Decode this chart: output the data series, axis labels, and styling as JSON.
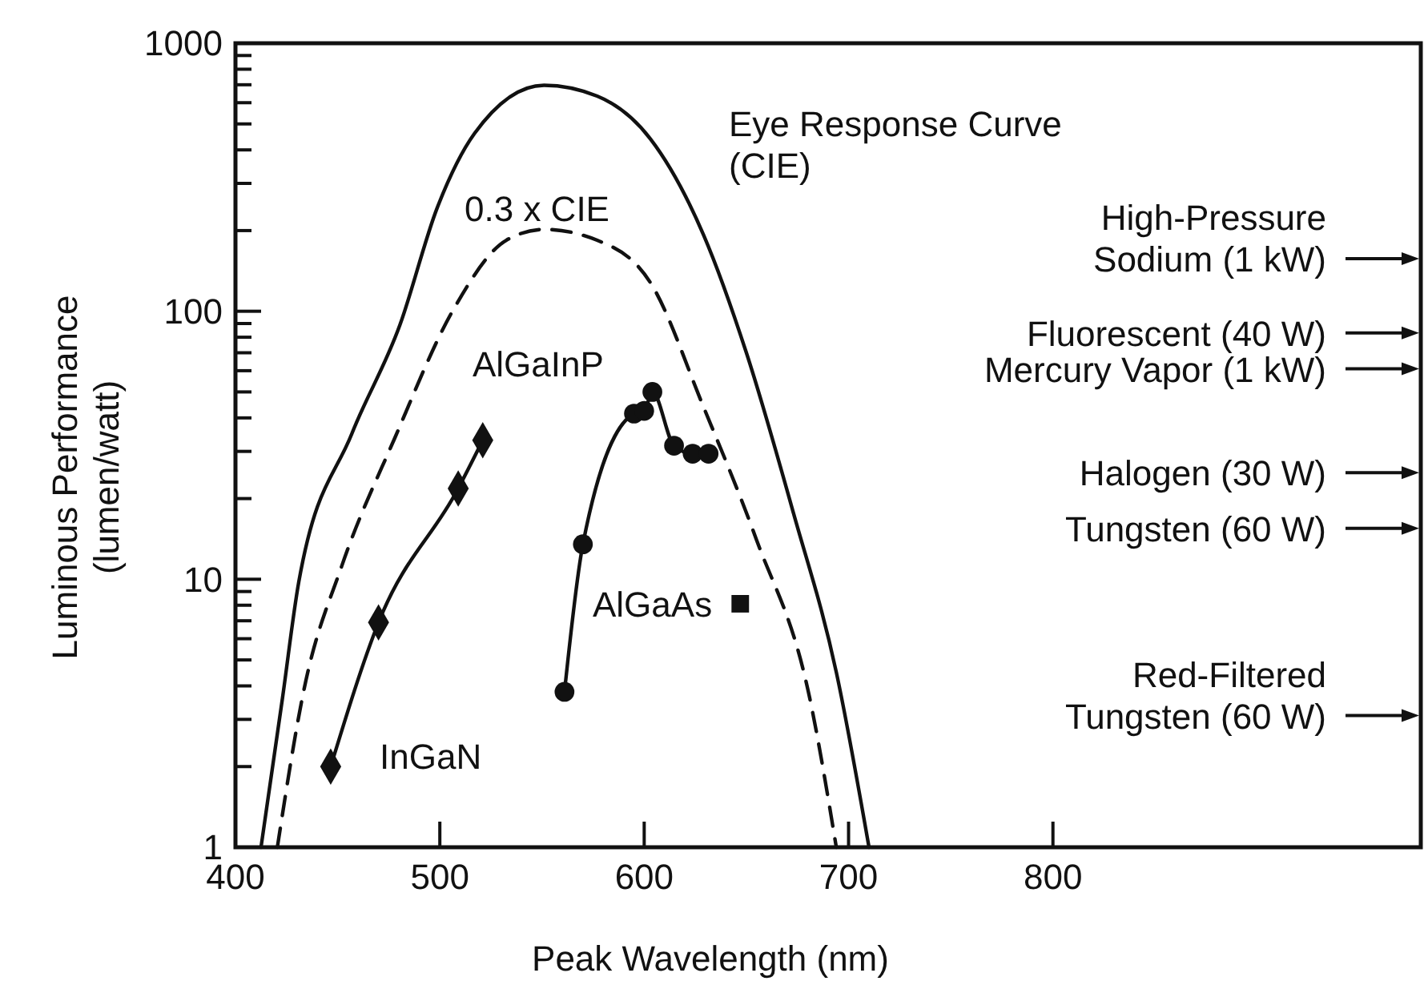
{
  "chart_data": {
    "type": "line",
    "xlabel": "Peak Wavelength (nm)",
    "ylabel": "Luminous Performance\n(lumen/watt)",
    "log": "y",
    "grid": false,
    "xlim": [
      400,
      980
    ],
    "xticks": [
      400,
      500,
      600,
      700,
      800
    ],
    "ylim": [
      1,
      1000
    ],
    "yticks": [
      1,
      {
        "value": 2,
        "label": null
      },
      {
        "value": 3,
        "label": null
      },
      {
        "value": 4,
        "label": null
      },
      {
        "value": 5,
        "label": null
      },
      {
        "value": 6,
        "label": null
      },
      {
        "value": 7,
        "label": null
      },
      {
        "value": 8,
        "label": null
      },
      {
        "value": 9,
        "label": null
      },
      10,
      {
        "value": 20,
        "label": null
      },
      {
        "value": 30,
        "label": null
      },
      {
        "value": 40,
        "label": null
      },
      {
        "value": 50,
        "label": null
      },
      {
        "value": 60,
        "label": null
      },
      {
        "value": 70,
        "label": null
      },
      {
        "value": 80,
        "label": null
      },
      {
        "value": 90,
        "label": null
      },
      100,
      {
        "value": 200,
        "label": null
      },
      {
        "value": 300,
        "label": null
      },
      {
        "value": 400,
        "label": null
      },
      {
        "value": 500,
        "label": null
      },
      {
        "value": 600,
        "label": null
      },
      {
        "value": 700,
        "label": null
      },
      {
        "value": 800,
        "label": null
      },
      {
        "value": 900,
        "label": null
      },
      1000
    ],
    "series": [
      {
        "name": "Eye Response Curve\n(CIE)",
        "color": "#111111",
        "marker": "none",
        "line_style": "solid",
        "x": [
          412.5,
          423,
          431,
          457,
          480.5,
          498.7,
          517,
          551,
          577,
          603,
          629,
          650,
          673,
          694,
          710
        ],
        "values": [
          1,
          3.6,
          9.8,
          35,
          89,
          243,
          461,
          697,
          635,
          440,
          193,
          70,
          17.7,
          4.5,
          1
        ]
      },
      {
        "name": "0.3 x CIE",
        "color": "#111111",
        "marker": "none",
        "line_style": "dashed",
        "x": [
          420.5,
          433.6,
          452,
          478,
          506.5,
          532.5,
          551,
          577,
          603,
          629,
          655,
          681,
          694
        ],
        "values": [
          1,
          3.9,
          11.2,
          33.7,
          101,
          184,
          202,
          184,
          128,
          44,
          14,
          3.6,
          1
        ]
      },
      {
        "name": "InGaN",
        "color": "#111111",
        "marker": "diamond",
        "line_style": "solid",
        "x": [
          446.6,
          470,
          509,
          521
        ],
        "values": [
          2,
          6.9,
          21.8,
          33
        ]
      },
      {
        "name": "AlGaInP",
        "color": "#111111",
        "marker": "circle",
        "line_style": "solid",
        "x": [
          561,
          570,
          595,
          600,
          604,
          614.6,
          623.7,
          631.5
        ],
        "values": [
          3.8,
          13.5,
          41.5,
          42.5,
          50,
          31.5,
          29.4,
          29.4
        ]
      },
      {
        "name": "AlGaAs",
        "type": "scatter",
        "color": "#111111",
        "marker": "square",
        "x": [
          647
        ],
        "values": [
          8.1
        ]
      }
    ],
    "ref_lines": [
      {
        "axis": "y",
        "value": 157,
        "label": "High-Pressure\nSodium (1 kW)"
      },
      {
        "axis": "y",
        "value": 83,
        "label": "Fluorescent (40 W)"
      },
      {
        "axis": "y",
        "value": 61,
        "label": "Mercury Vapor (1 kW)"
      },
      {
        "axis": "y",
        "value": 25,
        "label": "Halogen (30 W)"
      },
      {
        "axis": "y",
        "value": 15.5,
        "label": "Tungsten (60 W)"
      },
      {
        "axis": "y",
        "value": 3.1,
        "label": "Red-Filtered\nTungsten (60 W)"
      }
    ]
  }
}
